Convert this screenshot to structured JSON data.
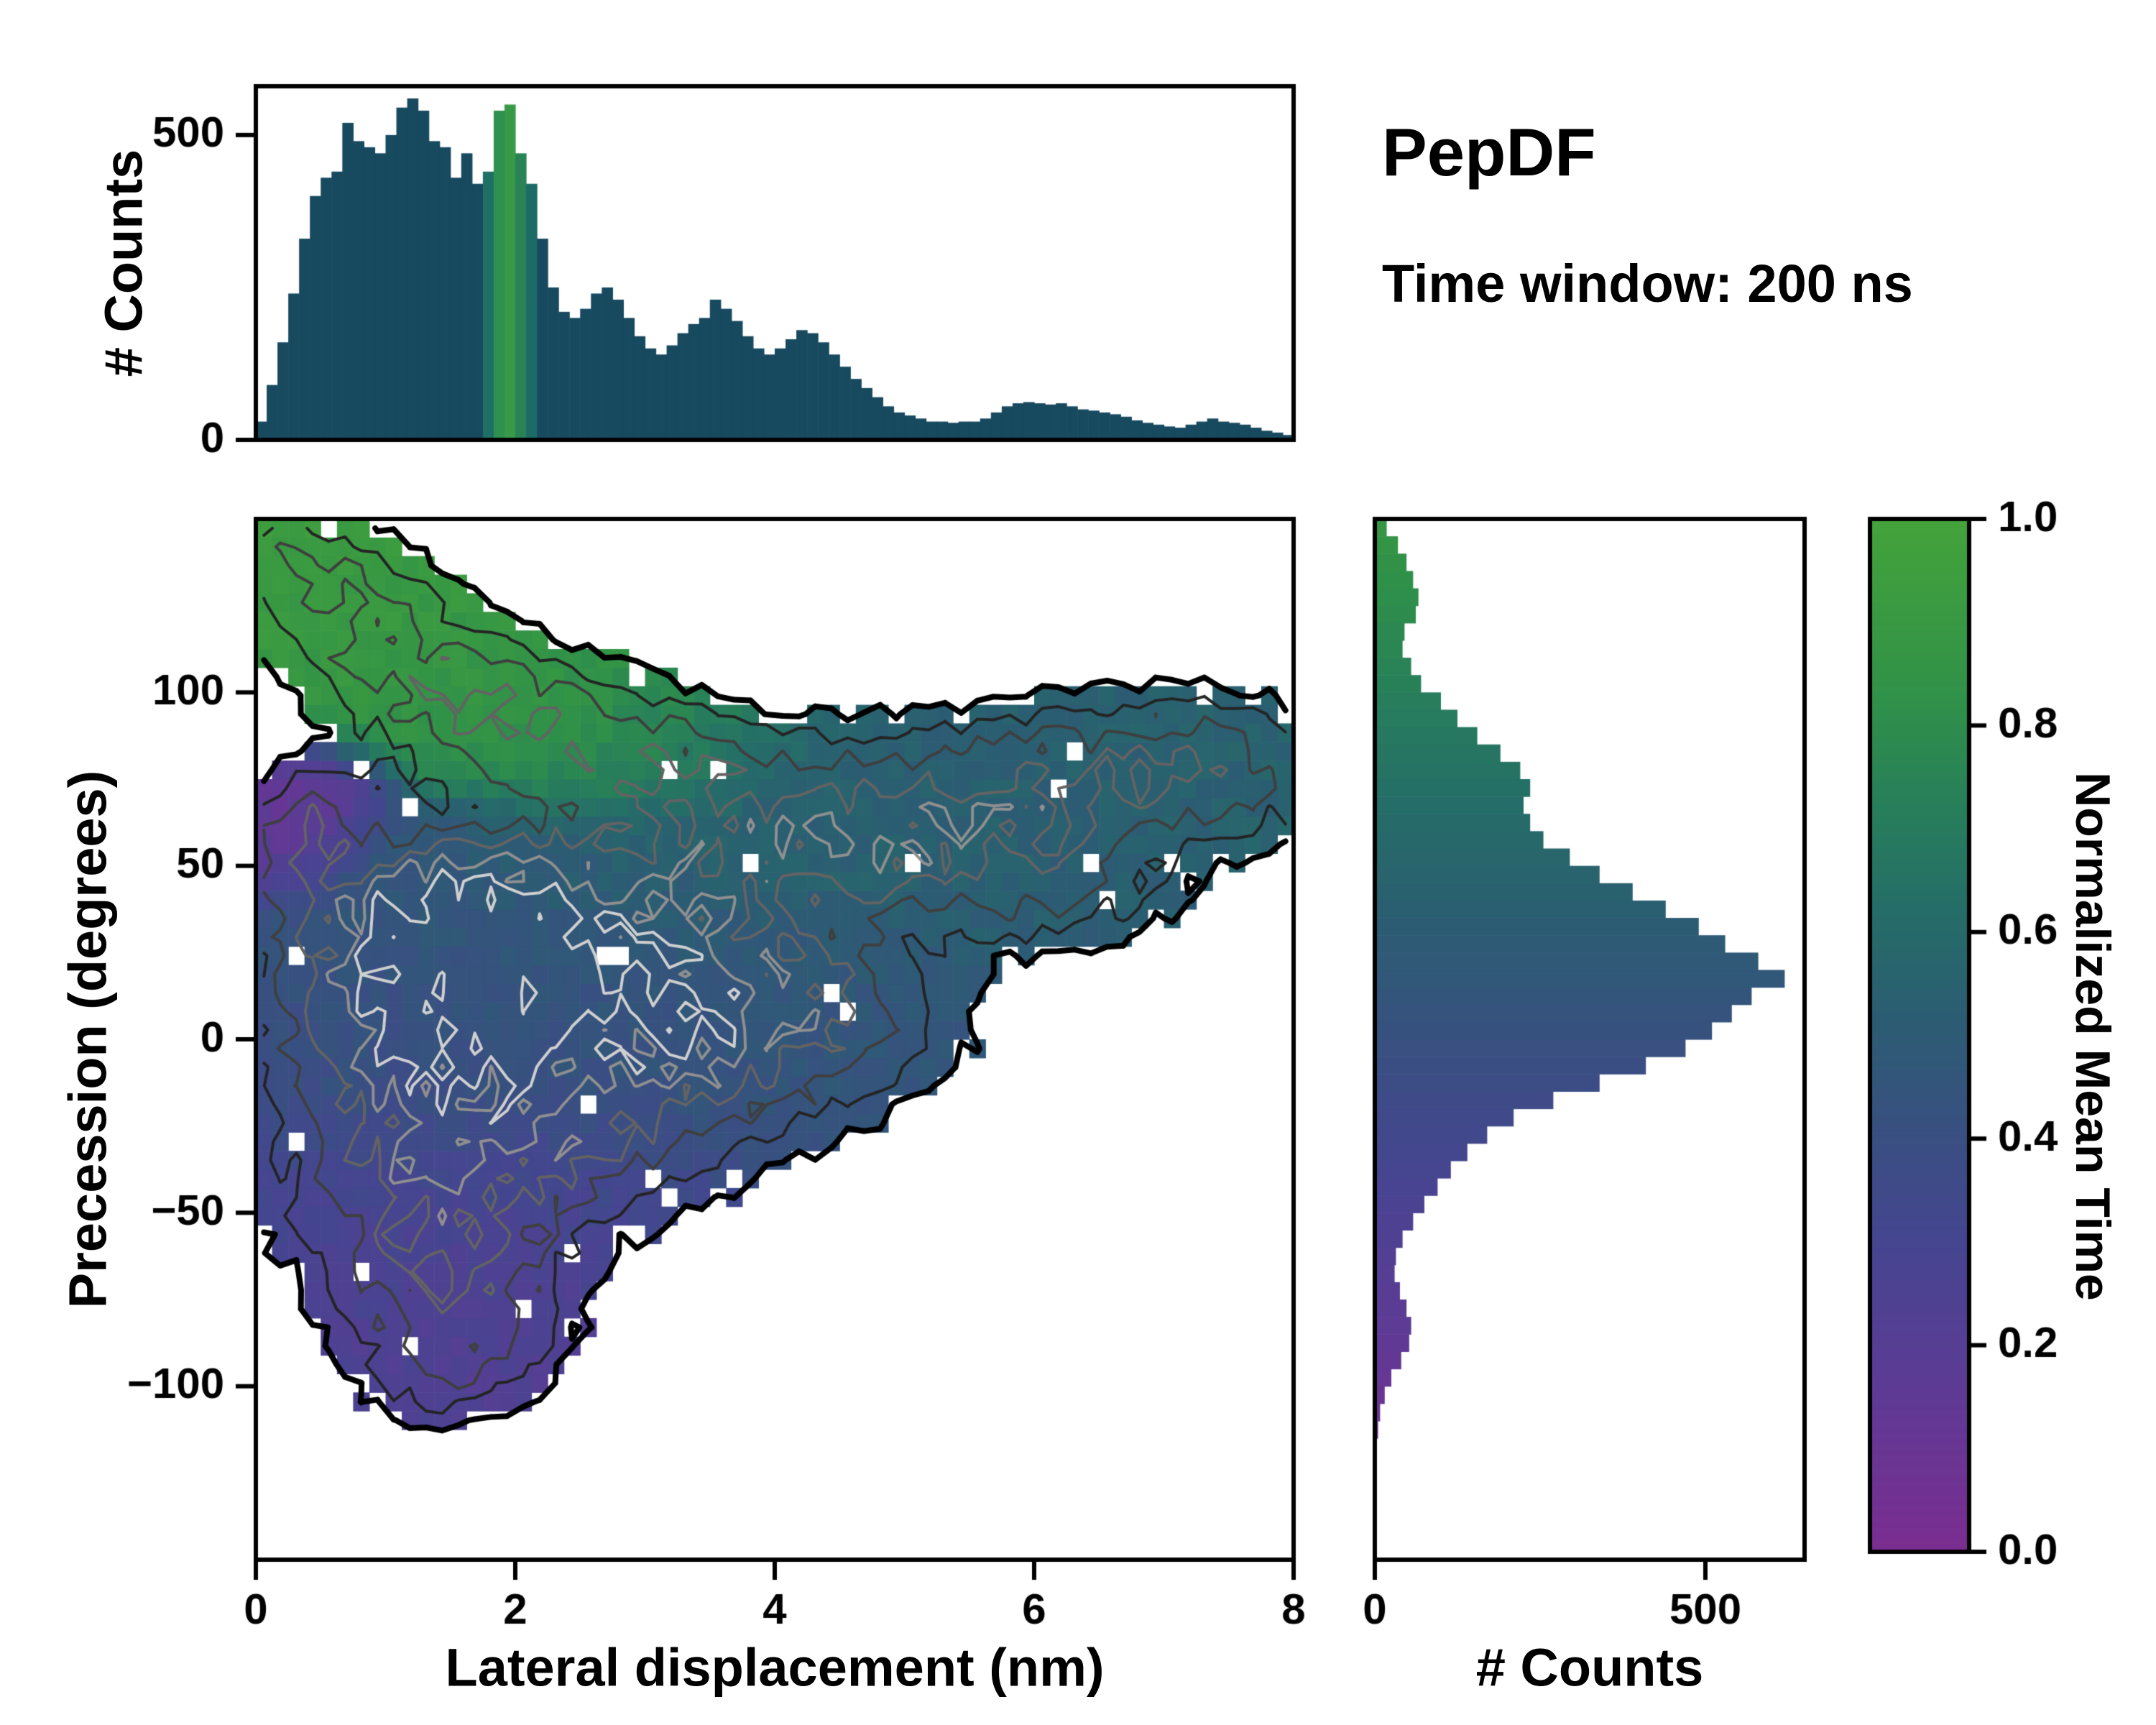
{
  "title": {
    "name": "PepDF",
    "subtitle": "Time window: 200 ns"
  },
  "colors": {
    "background": "#ffffff",
    "axis": "#000000",
    "bar_default": "#17495f"
  },
  "chart_data": {
    "type": "heatmap",
    "description": "2D histogram of precession vs lateral displacement colored by normalized mean time, with marginal count histograms and a colorbar.",
    "main": {
      "xlabel": "Lateral displacement (nm)",
      "ylabel": "Precession (degrees)",
      "xlim": [
        0,
        8
      ],
      "ylim": [
        -150,
        150
      ],
      "xticks": [
        {
          "v": 0,
          "l": "0"
        },
        {
          "v": 2,
          "l": "2"
        },
        {
          "v": 4,
          "l": "4"
        },
        {
          "v": 6,
          "l": "6"
        },
        {
          "v": 8,
          "l": "8"
        }
      ],
      "yticks": [
        {
          "v": -100,
          "l": "−100"
        },
        {
          "v": -50,
          "l": "−50"
        },
        {
          "v": 0,
          "l": "0"
        },
        {
          "v": 50,
          "l": "50"
        },
        {
          "v": 100,
          "l": "100"
        }
      ],
      "grid": [
        64,
        56
      ],
      "density_threshold": 0.055,
      "contour_levels": [
        0.055,
        0.12,
        0.22,
        0.36,
        0.52,
        0.7
      ],
      "contour_colors": [
        "#000000",
        "#242424",
        "#3f3f3f",
        "#636363",
        "#8f8f8f",
        "#cfcfcf"
      ],
      "contour_widths": [
        8,
        4,
        4,
        4,
        4,
        4
      ],
      "blobs": [
        [
          0.25,
          140,
          0.45,
          10,
          0.6,
          0.92
        ],
        [
          0.7,
          126,
          0.5,
          11,
          0.65,
          0.9
        ],
        [
          1.2,
          108,
          0.55,
          12,
          0.7,
          0.88
        ],
        [
          1.75,
          96,
          0.6,
          12,
          0.7,
          0.86
        ],
        [
          2.35,
          86,
          0.7,
          12,
          0.65,
          0.82
        ],
        [
          2.95,
          80,
          0.6,
          11,
          0.6,
          0.78
        ],
        [
          3.6,
          62,
          0.75,
          16,
          0.8,
          0.56
        ],
        [
          4.4,
          58,
          0.75,
          16,
          0.85,
          0.54
        ],
        [
          5.2,
          56,
          0.75,
          15,
          0.75,
          0.53
        ],
        [
          5.9,
          68,
          0.8,
          15,
          0.75,
          0.53
        ],
        [
          6.7,
          78,
          0.8,
          13,
          0.75,
          0.54
        ],
        [
          7.45,
          78,
          0.55,
          13,
          0.65,
          0.55
        ],
        [
          6.2,
          42,
          0.6,
          11,
          0.5,
          0.52
        ],
        [
          3.3,
          30,
          0.8,
          14,
          0.7,
          0.52
        ],
        [
          1.1,
          8,
          0.65,
          26,
          1.6,
          0.4
        ],
        [
          1.8,
          12,
          0.75,
          24,
          1.45,
          0.44
        ],
        [
          2.6,
          6,
          0.85,
          22,
          1.25,
          0.42
        ],
        [
          3.4,
          0,
          0.85,
          18,
          1.0,
          0.44
        ],
        [
          4.2,
          8,
          0.75,
          16,
          0.8,
          0.47
        ],
        [
          1.4,
          36,
          0.7,
          14,
          1.1,
          0.5
        ],
        [
          2.2,
          42,
          0.8,
          13,
          0.9,
          0.55
        ],
        [
          1.2,
          -45,
          0.65,
          18,
          0.95,
          0.28
        ],
        [
          1.6,
          -70,
          0.55,
          16,
          0.85,
          0.25
        ],
        [
          1.45,
          -92,
          0.45,
          12,
          0.75,
          0.24
        ],
        [
          2.2,
          -34,
          0.75,
          14,
          0.8,
          0.3
        ],
        [
          0.3,
          56,
          0.3,
          10,
          0.8,
          0.08
        ],
        [
          0.55,
          68,
          0.28,
          9,
          0.6,
          0.12
        ]
      ]
    },
    "top_histogram": {
      "ylabel": "# Counts",
      "ylim": [
        0,
        580
      ],
      "yticks": [
        {
          "v": 0,
          "l": "0"
        },
        {
          "v": 500,
          "l": "500"
        }
      ],
      "values": [
        30,
        90,
        160,
        240,
        330,
        400,
        430,
        440,
        520,
        490,
        480,
        470,
        500,
        545,
        560,
        540,
        490,
        480,
        430,
        470,
        420,
        440,
        540,
        550,
        470,
        420,
        330,
        250,
        210,
        200,
        215,
        240,
        250,
        230,
        200,
        170,
        150,
        140,
        155,
        175,
        190,
        200,
        230,
        215,
        195,
        170,
        150,
        140,
        150,
        165,
        180,
        175,
        160,
        140,
        120,
        100,
        85,
        70,
        55,
        45,
        40,
        35,
        30,
        30,
        28,
        30,
        30,
        35,
        45,
        55,
        60,
        62,
        60,
        58,
        60,
        55,
        50,
        48,
        45,
        42,
        38,
        32,
        28,
        25,
        22,
        20,
        25,
        30,
        35,
        30,
        28,
        25,
        20,
        15,
        12,
        8
      ],
      "band_colors": {
        "21": "#1e7064",
        "22": "#2f9150",
        "23": "#389a48",
        "24": "#2a8356",
        "25": "#1d6b66"
      }
    },
    "right_histogram": {
      "xlabel": "# Counts",
      "xlim": [
        0,
        650
      ],
      "xticks": [
        {
          "v": 0,
          "l": "0"
        },
        {
          "v": 500,
          "l": "500"
        }
      ],
      "bin_range": [
        -150,
        150
      ],
      "values": [
        0,
        0,
        0,
        0,
        0,
        2,
        3,
        5,
        8,
        15,
        25,
        40,
        52,
        55,
        48,
        38,
        30,
        32,
        42,
        58,
        75,
        95,
        115,
        140,
        170,
        210,
        270,
        340,
        410,
        470,
        510,
        540,
        570,
        620,
        580,
        530,
        490,
        440,
        390,
        340,
        295,
        255,
        235,
        225,
        235,
        220,
        190,
        155,
        125,
        100,
        70,
        55,
        42,
        45,
        62,
        66,
        58,
        48,
        35,
        18
      ],
      "time_color_mapping": {
        "base": 0.46,
        "ref_y": 15,
        "slope_per_deg": 0.0031,
        "min": 0.07,
        "max": 0.93
      }
    },
    "colorbar": {
      "label": "Normalized Mean Time",
      "ticks": [
        {
          "v": 1.0,
          "l": "1.0"
        },
        {
          "v": 0.8,
          "l": "0.8"
        },
        {
          "v": 0.6,
          "l": "0.6"
        },
        {
          "v": 0.4,
          "l": "0.4"
        },
        {
          "v": 0.2,
          "l": "0.2"
        },
        {
          "v": 0.0,
          "l": "0.0"
        }
      ],
      "stops": [
        [
          0.0,
          "#7b2d90"
        ],
        [
          0.15,
          "#5f3a95"
        ],
        [
          0.3,
          "#454590"
        ],
        [
          0.42,
          "#37517f"
        ],
        [
          0.52,
          "#2b5d72"
        ],
        [
          0.62,
          "#256d68"
        ],
        [
          0.72,
          "#277e5b"
        ],
        [
          0.82,
          "#2f9049"
        ],
        [
          1.0,
          "#44a33a"
        ]
      ]
    }
  }
}
